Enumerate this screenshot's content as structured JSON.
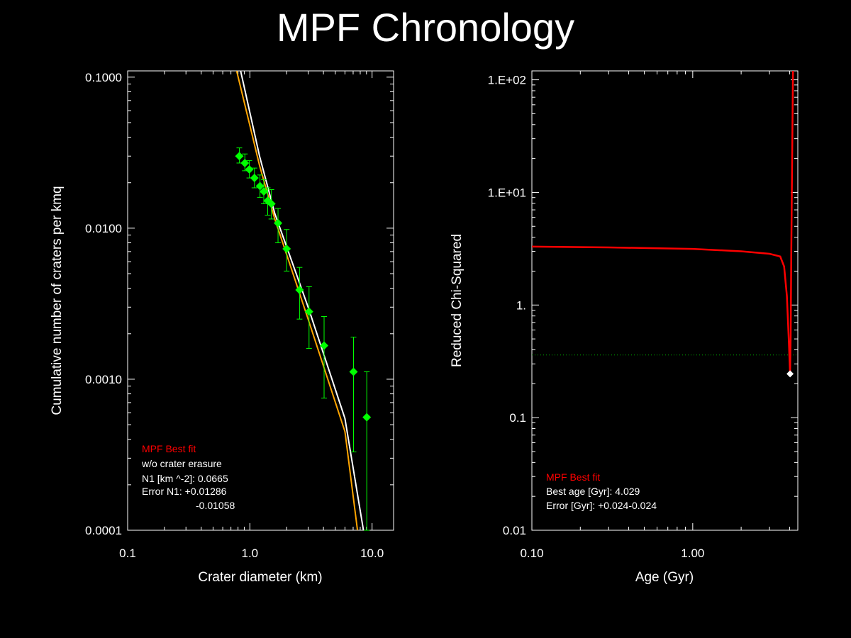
{
  "page": {
    "title": "MPF Chronology",
    "title_color": "#ff0000"
  },
  "chart_data": [
    {
      "type": "scatter",
      "xscale": "log",
      "yscale": "log",
      "xlim": [
        0.1,
        15
      ],
      "ylim": [
        0.0001,
        0.11
      ],
      "xlabel": "Crater diameter (km)",
      "ylabel": "Cumulative number of craters per kmq",
      "xticks": [
        0.1,
        1.0,
        10.0
      ],
      "xtick_labels": [
        "0.1",
        "1.0",
        "10.0"
      ],
      "yticks": [
        0.0001,
        0.001,
        0.01,
        0.1
      ],
      "ytick_labels": [
        "0.0001",
        "0.0010",
        "0.0100",
        "0.1000"
      ],
      "grid": false,
      "colors": {
        "points": "#00ff00",
        "fit_white": "#ffffff",
        "fit_orange": "#ffa500",
        "axes": "#ffffff"
      },
      "points": [
        {
          "x": 0.82,
          "y": 0.03,
          "ylo": 0.027,
          "yhi": 0.034
        },
        {
          "x": 0.91,
          "y": 0.027,
          "ylo": 0.024,
          "yhi": 0.031
        },
        {
          "x": 0.99,
          "y": 0.0245,
          "ylo": 0.0215,
          "yhi": 0.028
        },
        {
          "x": 1.09,
          "y": 0.0215,
          "ylo": 0.0185,
          "yhi": 0.025
        },
        {
          "x": 1.21,
          "y": 0.019,
          "ylo": 0.016,
          "yhi": 0.0225
        },
        {
          "x": 1.3,
          "y": 0.0175,
          "ylo": 0.0145,
          "yhi": 0.021
        },
        {
          "x": 1.4,
          "y": 0.0152,
          "ylo": 0.0122,
          "yhi": 0.0185
        },
        {
          "x": 1.5,
          "y": 0.0145,
          "ylo": 0.0115,
          "yhi": 0.018
        },
        {
          "x": 1.7,
          "y": 0.0108,
          "ylo": 0.008,
          "yhi": 0.0135
        },
        {
          "x": 2.0,
          "y": 0.0073,
          "ylo": 0.0052,
          "yhi": 0.0098
        },
        {
          "x": 2.55,
          "y": 0.0039,
          "ylo": 0.0025,
          "yhi": 0.0055
        },
        {
          "x": 3.05,
          "y": 0.0028,
          "ylo": 0.0016,
          "yhi": 0.0041
        },
        {
          "x": 4.05,
          "y": 0.00167,
          "ylo": 0.00075,
          "yhi": 0.0026
        },
        {
          "x": 7.05,
          "y": 0.00112,
          "ylo": 0.00033,
          "yhi": 0.0019
        },
        {
          "x": 9.05,
          "y": 0.00056,
          "ylo": 0.0001,
          "yhi": 0.00112
        }
      ],
      "fit_white": [
        [
          0.84,
          0.11
        ],
        [
          1.2,
          0.03
        ],
        [
          1.6,
          0.0125
        ],
        [
          3.0,
          0.003
        ],
        [
          6.0,
          0.00055
        ],
        [
          8.5,
          0.0001
        ]
      ],
      "fit_orange": [
        [
          0.78,
          0.11
        ],
        [
          1.2,
          0.026
        ],
        [
          1.6,
          0.0115
        ],
        [
          3.0,
          0.0025
        ],
        [
          6.0,
          0.00045
        ],
        [
          7.6,
          0.0001
        ]
      ],
      "legend": {
        "heading": "MPF Best fit",
        "heading_color": "#ff0000",
        "lines": [
          "w/o crater erasure",
          "N1 [km ^-2]: 0.0665",
          "Error N1: +0.01286",
          "-0.01058"
        ]
      }
    },
    {
      "type": "line",
      "xscale": "log",
      "yscale": "log",
      "xlim": [
        0.1,
        4.5
      ],
      "ylim": [
        0.01,
        120
      ],
      "xlabel": "Age (Gyr)",
      "ylabel": "Reduced Chi-Squared",
      "xticks": [
        0.1,
        1.0
      ],
      "xtick_labels": [
        "0.10",
        "1.00"
      ],
      "yticks": [
        0.01,
        0.1,
        1,
        10,
        100
      ],
      "ytick_labels": [
        "0.01",
        "0.1",
        "1.",
        "1.E+01",
        "1.E+02"
      ],
      "grid": false,
      "colors": {
        "curve": "#ff0000",
        "threshold": "#00aa00",
        "marker": "#ffffff",
        "axes": "#ffffff"
      },
      "curve": [
        [
          0.1,
          3.3
        ],
        [
          0.3,
          3.25
        ],
        [
          1.0,
          3.15
        ],
        [
          2.0,
          3.0
        ],
        [
          3.0,
          2.85
        ],
        [
          3.5,
          2.7
        ],
        [
          3.7,
          2.2
        ],
        [
          3.85,
          1.2
        ],
        [
          3.95,
          0.5
        ],
        [
          4.029,
          0.245
        ],
        [
          4.06,
          0.5
        ],
        [
          4.1,
          3.0
        ],
        [
          4.15,
          20
        ],
        [
          4.2,
          120
        ]
      ],
      "threshold_y": 0.36,
      "best": {
        "x": 4.029,
        "y": 0.245
      },
      "legend": {
        "heading": "MPF Best fit",
        "heading_color": "#ff0000",
        "lines": [
          "Best age [Gyr]: 4.029",
          "Error [Gyr]: +0.024-0.024"
        ]
      }
    }
  ]
}
